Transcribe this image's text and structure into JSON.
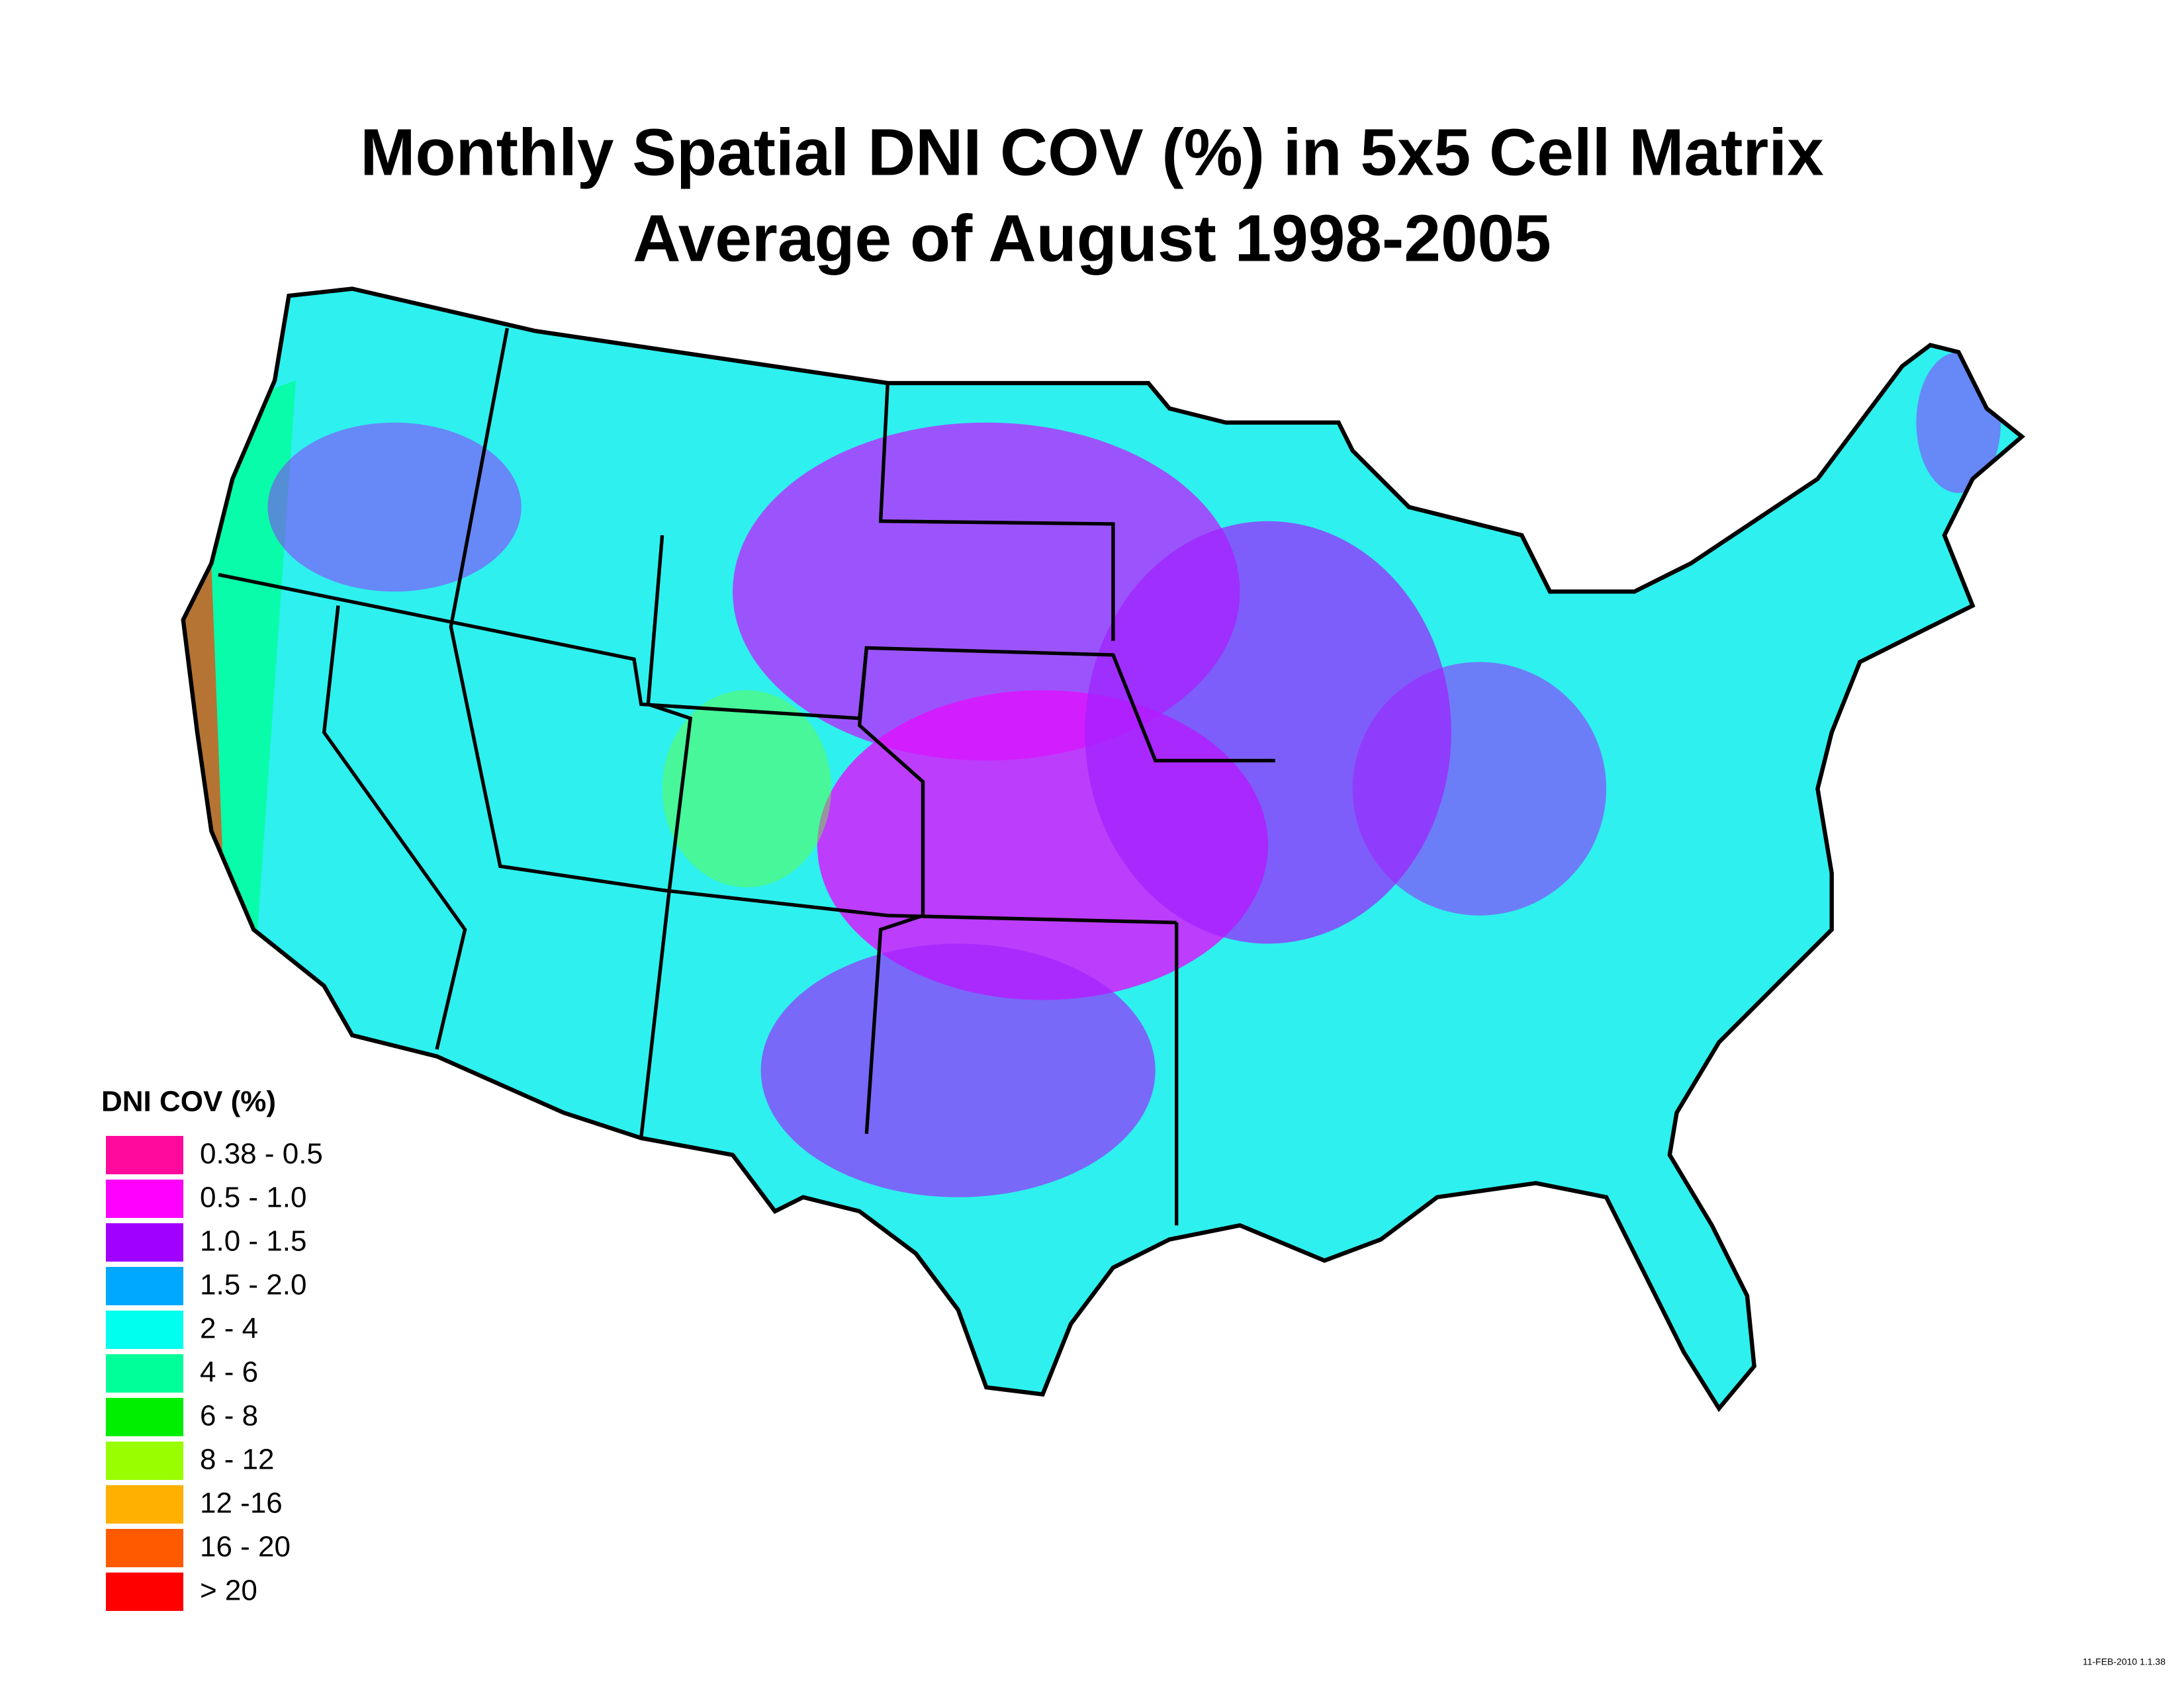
{
  "title": [
    "Monthly Spatial DNI COV (%) in 5x5 Cell Matrix",
    "Average of August 1998-2005"
  ],
  "legend": {
    "title": "DNI COV (%)",
    "items": [
      {
        "label": "0.38 - 0.5",
        "color": "#ff0a9c"
      },
      {
        "label": "0.5 - 1.0",
        "color": "#ff00ff"
      },
      {
        "label": "1.0 - 1.5",
        "color": "#a000ff"
      },
      {
        "label": "1.5 - 2.0",
        "color": "#00a8ff"
      },
      {
        "label": "2 - 4",
        "color": "#00ffee"
      },
      {
        "label": "4 - 6",
        "color": "#00ff99"
      },
      {
        "label": "6 - 8",
        "color": "#00ee00"
      },
      {
        "label": "8 - 12",
        "color": "#99ff00"
      },
      {
        "label": "12 -16",
        "color": "#ffb000"
      },
      {
        "label": "16 - 20",
        "color": "#ff5a00"
      },
      {
        "label": "> 20",
        "color": "#ff0000"
      }
    ]
  },
  "timestamp": "11-FEB-2010 1.1.38"
}
